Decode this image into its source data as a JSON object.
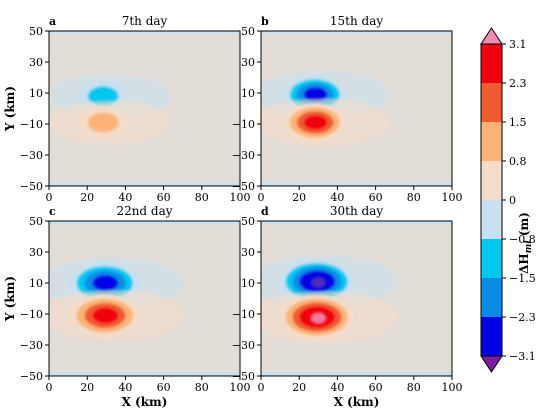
{
  "figure": {
    "x_label": "X (km)",
    "y_label": "Y (km)",
    "colorbar_label": "ΔH",
    "colorbar_label_sub": "ml",
    "colorbar_label_unit": " (m)"
  },
  "chart_data": {
    "type": "heatmap",
    "x_ticks": [
      0,
      20,
      40,
      60,
      80,
      100
    ],
    "y_ticks": [
      50,
      30,
      10,
      -10,
      -30,
      -50
    ],
    "xlim": [
      0,
      100
    ],
    "ylim": [
      -50,
      50
    ],
    "colorbar": {
      "levels": [
        3.1,
        2.3,
        1.5,
        0.8,
        0,
        -0.8,
        -1.5,
        -2.3,
        -3.1
      ],
      "level_labels": [
        "3.1",
        "2.3",
        "1.5",
        "0.8",
        "0",
        "−0.8",
        "−1.5",
        "−2.3",
        "−3.1"
      ],
      "colors": [
        "#f0000f",
        "#f05a32",
        "#fab478",
        "#f5dcc8",
        "#c8e1f0",
        "#00c8f0",
        "#0a8ce6",
        "#0000e6"
      ],
      "extend_high_color": "#f08cb4",
      "extend_low_color": "#7a1fa0",
      "background": "#e2dcd7"
    },
    "panels": [
      {
        "letter": "a",
        "title": "7th day",
        "center_x": 28,
        "pos_y": -9,
        "neg_y": 8,
        "amp": 1.0
      },
      {
        "letter": "b",
        "title": "15th day",
        "center_x": 28,
        "pos_y": -9,
        "neg_y": 9,
        "amp": 2.1
      },
      {
        "letter": "c",
        "title": "22nd day",
        "center_x": 29,
        "pos_y": -11,
        "neg_y": 10,
        "amp": 2.8
      },
      {
        "letter": "d",
        "title": "30th day",
        "center_x": 29,
        "pos_y": -12,
        "neg_y": 11,
        "amp": 3.1
      }
    ]
  }
}
